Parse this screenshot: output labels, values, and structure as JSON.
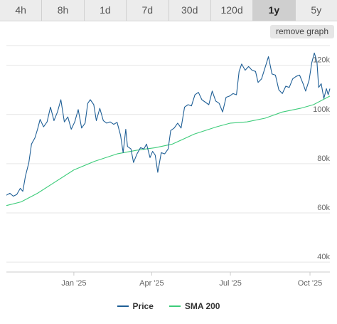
{
  "tabs": [
    {
      "label": "4h",
      "active": false
    },
    {
      "label": "8h",
      "active": false
    },
    {
      "label": "1d",
      "active": false
    },
    {
      "label": "7d",
      "active": false
    },
    {
      "label": "30d",
      "active": false
    },
    {
      "label": "120d",
      "active": false
    },
    {
      "label": "1y",
      "active": true
    },
    {
      "label": "5y",
      "active": false
    }
  ],
  "remove_graph_label": "remove graph",
  "chart_data": {
    "type": "line",
    "title": "",
    "xlabel": "",
    "ylabel": "",
    "x_start": "2024-10-15",
    "x_end": "2025-10-24",
    "ylim": [
      36000,
      128000
    ],
    "y_ticks": [
      {
        "value": 40000,
        "label": "40k"
      },
      {
        "value": 60000,
        "label": "60k"
      },
      {
        "value": 80000,
        "label": "80k"
      },
      {
        "value": 100000,
        "label": "100k"
      },
      {
        "value": 120000,
        "label": "120k"
      }
    ],
    "x_ticks": [
      {
        "date": "2025-01-01",
        "label": "Jan '25"
      },
      {
        "date": "2025-04-01",
        "label": "Apr '25"
      },
      {
        "date": "2025-07-01",
        "label": "Jul '25"
      },
      {
        "date": "2025-10-01",
        "label": "Oct '25"
      }
    ],
    "grid": true,
    "legend_position": "bottom",
    "series": [
      {
        "name": "Price",
        "color": "#1f5f96",
        "points": [
          [
            "2024-10-15",
            67200
          ],
          [
            "2024-10-19",
            68000
          ],
          [
            "2024-10-23",
            66800
          ],
          [
            "2024-10-27",
            67500
          ],
          [
            "2024-10-31",
            70000
          ],
          [
            "2024-11-03",
            68800
          ],
          [
            "2024-11-06",
            75000
          ],
          [
            "2024-11-10",
            80500
          ],
          [
            "2024-11-13",
            88000
          ],
          [
            "2024-11-17",
            90500
          ],
          [
            "2024-11-20",
            94000
          ],
          [
            "2024-11-23",
            98000
          ],
          [
            "2024-11-27",
            95000
          ],
          [
            "2024-12-01",
            97000
          ],
          [
            "2024-12-05",
            103000
          ],
          [
            "2024-12-09",
            97500
          ],
          [
            "2024-12-13",
            101000
          ],
          [
            "2024-12-17",
            106000
          ],
          [
            "2024-12-21",
            97000
          ],
          [
            "2024-12-25",
            99000
          ],
          [
            "2024-12-29",
            94000
          ],
          [
            "2025-01-02",
            97000
          ],
          [
            "2025-01-06",
            102000
          ],
          [
            "2025-01-10",
            94500
          ],
          [
            "2025-01-14",
            96500
          ],
          [
            "2025-01-17",
            104500
          ],
          [
            "2025-01-20",
            106000
          ],
          [
            "2025-01-24",
            104000
          ],
          [
            "2025-01-27",
            97500
          ],
          [
            "2025-01-31",
            102500
          ],
          [
            "2025-02-04",
            97500
          ],
          [
            "2025-02-08",
            96500
          ],
          [
            "2025-02-12",
            97000
          ],
          [
            "2025-02-16",
            96000
          ],
          [
            "2025-02-20",
            96800
          ],
          [
            "2025-02-24",
            91500
          ],
          [
            "2025-02-27",
            84500
          ],
          [
            "2025-03-02",
            94000
          ],
          [
            "2025-03-04",
            87000
          ],
          [
            "2025-03-08",
            86000
          ],
          [
            "2025-03-11",
            80500
          ],
          [
            "2025-03-15",
            84000
          ],
          [
            "2025-03-19",
            86500
          ],
          [
            "2025-03-23",
            86000
          ],
          [
            "2025-03-26",
            88000
          ],
          [
            "2025-03-30",
            82500
          ],
          [
            "2025-04-02",
            85000
          ],
          [
            "2025-04-05",
            83500
          ],
          [
            "2025-04-08",
            76500
          ],
          [
            "2025-04-12",
            84500
          ],
          [
            "2025-04-16",
            84000
          ],
          [
            "2025-04-20",
            86000
          ],
          [
            "2025-04-23",
            93500
          ],
          [
            "2025-04-27",
            94500
          ],
          [
            "2025-05-01",
            96500
          ],
          [
            "2025-05-05",
            94500
          ],
          [
            "2025-05-09",
            103000
          ],
          [
            "2025-05-13",
            104000
          ],
          [
            "2025-05-17",
            103500
          ],
          [
            "2025-05-21",
            108000
          ],
          [
            "2025-05-25",
            109000
          ],
          [
            "2025-05-29",
            106000
          ],
          [
            "2025-06-02",
            105000
          ],
          [
            "2025-06-06",
            104000
          ],
          [
            "2025-06-10",
            109500
          ],
          [
            "2025-06-14",
            105500
          ],
          [
            "2025-06-18",
            104500
          ],
          [
            "2025-06-22",
            101000
          ],
          [
            "2025-06-26",
            107000
          ],
          [
            "2025-06-30",
            107500
          ],
          [
            "2025-07-04",
            108500
          ],
          [
            "2025-07-08",
            108000
          ],
          [
            "2025-07-11",
            117500
          ],
          [
            "2025-07-14",
            120500
          ],
          [
            "2025-07-18",
            118000
          ],
          [
            "2025-07-22",
            119500
          ],
          [
            "2025-07-26",
            118000
          ],
          [
            "2025-07-30",
            117500
          ],
          [
            "2025-08-02",
            113000
          ],
          [
            "2025-08-06",
            114500
          ],
          [
            "2025-08-10",
            119000
          ],
          [
            "2025-08-14",
            123500
          ],
          [
            "2025-08-18",
            116500
          ],
          [
            "2025-08-22",
            116000
          ],
          [
            "2025-08-26",
            110000
          ],
          [
            "2025-08-30",
            108500
          ],
          [
            "2025-09-03",
            111500
          ],
          [
            "2025-09-07",
            111000
          ],
          [
            "2025-09-11",
            114500
          ],
          [
            "2025-09-15",
            115500
          ],
          [
            "2025-09-19",
            116000
          ],
          [
            "2025-09-23",
            112500
          ],
          [
            "2025-09-26",
            109500
          ],
          [
            "2025-09-30",
            114000
          ],
          [
            "2025-10-03",
            121000
          ],
          [
            "2025-10-06",
            125000
          ],
          [
            "2025-10-09",
            121500
          ],
          [
            "2025-10-11",
            111000
          ],
          [
            "2025-10-14",
            112500
          ],
          [
            "2025-10-17",
            106500
          ],
          [
            "2025-10-20",
            110500
          ],
          [
            "2025-10-22",
            108000
          ],
          [
            "2025-10-24",
            110500
          ]
        ]
      },
      {
        "name": "SMA 200",
        "color": "#3dcc7a",
        "points": [
          [
            "2024-10-15",
            63000
          ],
          [
            "2024-11-01",
            64500
          ],
          [
            "2024-11-20",
            68000
          ],
          [
            "2024-12-10",
            72500
          ],
          [
            "2025-01-01",
            77500
          ],
          [
            "2025-01-25",
            81000
          ],
          [
            "2025-02-20",
            84000
          ],
          [
            "2025-03-15",
            85500
          ],
          [
            "2025-04-05",
            86500
          ],
          [
            "2025-04-25",
            88000
          ],
          [
            "2025-05-20",
            92000
          ],
          [
            "2025-06-15",
            95000
          ],
          [
            "2025-07-01",
            96500
          ],
          [
            "2025-07-20",
            97000
          ],
          [
            "2025-08-10",
            98500
          ],
          [
            "2025-08-30",
            101000
          ],
          [
            "2025-09-20",
            102500
          ],
          [
            "2025-10-05",
            104000
          ],
          [
            "2025-10-24",
            107500
          ]
        ]
      }
    ]
  }
}
